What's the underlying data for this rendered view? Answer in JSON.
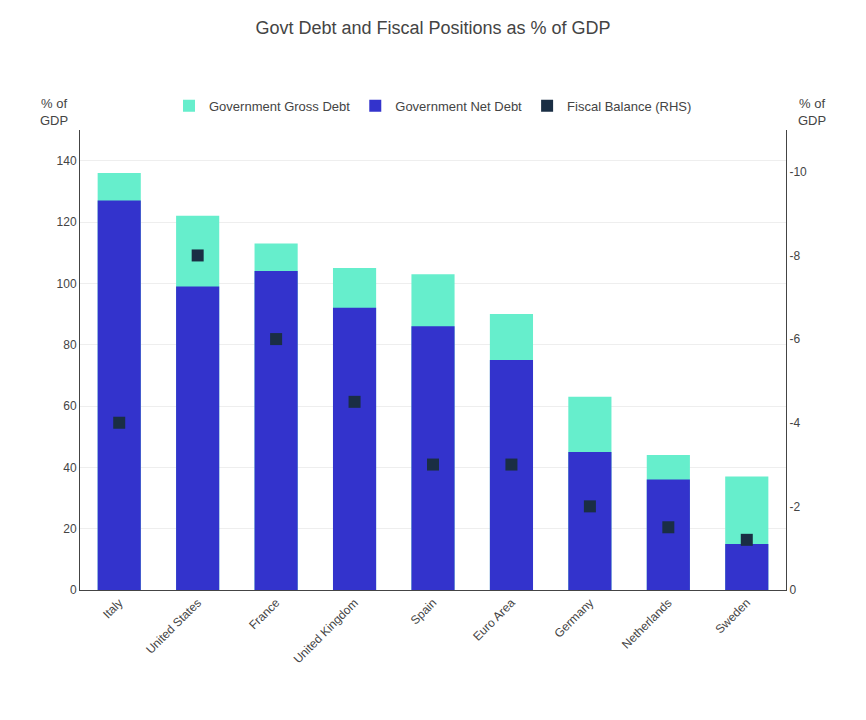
{
  "chart_data": {
    "type": "bar",
    "title": "Govt Debt and Fiscal Positions as % of GDP",
    "categories": [
      "Italy",
      "United States",
      "France",
      "United Kingdom",
      "Spain",
      "Euro Area",
      "Germany",
      "Netherlands",
      "Sweden"
    ],
    "series": [
      {
        "name": "Government Gross Debt",
        "color": "#66eecc",
        "values": [
          136,
          122,
          113,
          105,
          103,
          90,
          63,
          44,
          37
        ]
      },
      {
        "name": "Government Net Debt",
        "color": "#3333cc",
        "values": [
          127,
          99,
          104,
          92,
          86,
          75,
          45,
          36,
          15
        ]
      },
      {
        "name": "Fiscal Balance (RHS)",
        "color": "#1a2e44",
        "type": "scatter",
        "marker": "square",
        "axis": "y2",
        "values": [
          -4.0,
          -8.0,
          -6.0,
          -4.5,
          -3.0,
          -3.0,
          -2.0,
          -1.5,
          -1.2
        ]
      }
    ],
    "ylabel": "% of\nGDP",
    "y2label": "% of\nGDP",
    "ylim": [
      0,
      150
    ],
    "yticks": [
      0,
      20,
      40,
      60,
      80,
      100,
      120,
      140
    ],
    "y2lim": [
      0,
      -11
    ],
    "y2ticks": [
      0,
      -2,
      -4,
      -6,
      -8,
      -10
    ],
    "grid": true,
    "legend": "top"
  }
}
